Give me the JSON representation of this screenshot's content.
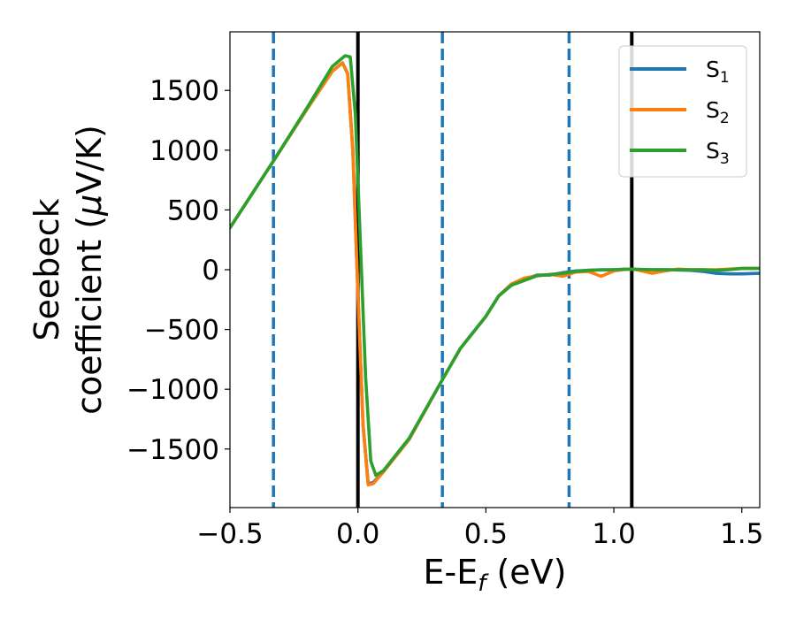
{
  "chart_data": {
    "type": "line",
    "xlabel": {
      "main": "E-E",
      "sub": "f",
      "unit": " (eV)"
    },
    "ylabel": {
      "line1": "Seebeck",
      "line2_main": "coefficient  (",
      "line2_mu": "μ",
      "line2_end": "V/K)"
    },
    "xlim": [
      -0.5,
      1.57
    ],
    "ylim": [
      -1990,
      1990
    ],
    "x_ticks": [
      -0.5,
      0.0,
      0.5,
      1.0,
      1.5
    ],
    "x_tick_labels": [
      "−0.5",
      "0.0",
      "0.5",
      "1.0",
      "1.5"
    ],
    "y_ticks": [
      -1500,
      -1000,
      -500,
      0,
      500,
      1000,
      1500
    ],
    "y_tick_labels": [
      "−1500",
      "−1000",
      "−500",
      "0",
      "500",
      "1000",
      "1500"
    ],
    "grid": false,
    "legend_position": "top-right",
    "vertical_lines": [
      {
        "x": -0.33,
        "style": "dashed",
        "color": "#1f77b4"
      },
      {
        "x": 0.0,
        "style": "solid",
        "color": "#000000"
      },
      {
        "x": 0.33,
        "style": "dashed",
        "color": "#1f77b4"
      },
      {
        "x": 0.825,
        "style": "dashed",
        "color": "#1f77b4"
      },
      {
        "x": 1.07,
        "style": "solid",
        "color": "#000000"
      }
    ],
    "series": [
      {
        "name": {
          "main": "S",
          "sub": "1"
        },
        "color": "#1f77b4",
        "points": [
          [
            -0.5,
            350
          ],
          [
            -0.33,
            910
          ],
          [
            -0.2,
            1340
          ],
          [
            -0.1,
            1660
          ],
          [
            -0.06,
            1730
          ],
          [
            -0.04,
            1640
          ],
          [
            -0.02,
            1000
          ],
          [
            0.0,
            -200
          ],
          [
            0.02,
            -1300
          ],
          [
            0.04,
            -1790
          ],
          [
            0.06,
            -1780
          ],
          [
            0.1,
            -1690
          ],
          [
            0.2,
            -1420
          ],
          [
            0.33,
            -920
          ],
          [
            0.4,
            -660
          ],
          [
            0.5,
            -390
          ],
          [
            0.55,
            -220
          ],
          [
            0.6,
            -120
          ],
          [
            0.65,
            -80
          ],
          [
            0.7,
            -45
          ],
          [
            0.75,
            -45
          ],
          [
            0.8,
            -25
          ],
          [
            0.85,
            -10
          ],
          [
            0.9,
            -5
          ],
          [
            0.95,
            0
          ],
          [
            1.0,
            0
          ],
          [
            1.05,
            5
          ],
          [
            1.07,
            5
          ],
          [
            1.1,
            0
          ],
          [
            1.2,
            0
          ],
          [
            1.3,
            -5
          ],
          [
            1.35,
            -15
          ],
          [
            1.4,
            -30
          ],
          [
            1.45,
            -35
          ],
          [
            1.5,
            -35
          ],
          [
            1.57,
            -30
          ]
        ]
      },
      {
        "name": {
          "main": "S",
          "sub": "2"
        },
        "color": "#ff7f0e",
        "points": [
          [
            -0.5,
            350
          ],
          [
            -0.33,
            910
          ],
          [
            -0.2,
            1340
          ],
          [
            -0.1,
            1660
          ],
          [
            -0.06,
            1730
          ],
          [
            -0.04,
            1640
          ],
          [
            -0.02,
            1000
          ],
          [
            0.0,
            -200
          ],
          [
            0.02,
            -1300
          ],
          [
            0.04,
            -1800
          ],
          [
            0.06,
            -1790
          ],
          [
            0.1,
            -1690
          ],
          [
            0.2,
            -1420
          ],
          [
            0.33,
            -920
          ],
          [
            0.4,
            -660
          ],
          [
            0.5,
            -390
          ],
          [
            0.55,
            -220
          ],
          [
            0.6,
            -120
          ],
          [
            0.65,
            -70
          ],
          [
            0.7,
            -50
          ],
          [
            0.75,
            -40
          ],
          [
            0.8,
            -55
          ],
          [
            0.85,
            -20
          ],
          [
            0.9,
            -15
          ],
          [
            0.95,
            -55
          ],
          [
            1.0,
            -10
          ],
          [
            1.05,
            5
          ],
          [
            1.07,
            5
          ],
          [
            1.1,
            -5
          ],
          [
            1.15,
            -30
          ],
          [
            1.2,
            -10
          ],
          [
            1.25,
            5
          ],
          [
            1.3,
            0
          ],
          [
            1.4,
            0
          ],
          [
            1.5,
            10
          ],
          [
            1.57,
            10
          ]
        ]
      },
      {
        "name": {
          "main": "S",
          "sub": "3"
        },
        "color": "#2ca02c",
        "points": [
          [
            -0.5,
            350
          ],
          [
            -0.33,
            910
          ],
          [
            -0.2,
            1350
          ],
          [
            -0.1,
            1700
          ],
          [
            -0.05,
            1790
          ],
          [
            -0.03,
            1780
          ],
          [
            -0.01,
            1300
          ],
          [
            0.01,
            200
          ],
          [
            0.03,
            -900
          ],
          [
            0.05,
            -1600
          ],
          [
            0.07,
            -1720
          ],
          [
            0.1,
            -1680
          ],
          [
            0.2,
            -1410
          ],
          [
            0.33,
            -920
          ],
          [
            0.4,
            -660
          ],
          [
            0.5,
            -390
          ],
          [
            0.55,
            -220
          ],
          [
            0.6,
            -130
          ],
          [
            0.65,
            -90
          ],
          [
            0.7,
            -50
          ],
          [
            0.75,
            -40
          ],
          [
            0.8,
            -30
          ],
          [
            0.85,
            -15
          ],
          [
            0.9,
            -5
          ],
          [
            1.0,
            0
          ],
          [
            1.07,
            5
          ],
          [
            1.15,
            0
          ],
          [
            1.25,
            0
          ],
          [
            1.35,
            0
          ],
          [
            1.4,
            -5
          ],
          [
            1.45,
            0
          ],
          [
            1.5,
            10
          ],
          [
            1.57,
            10
          ]
        ]
      }
    ]
  }
}
